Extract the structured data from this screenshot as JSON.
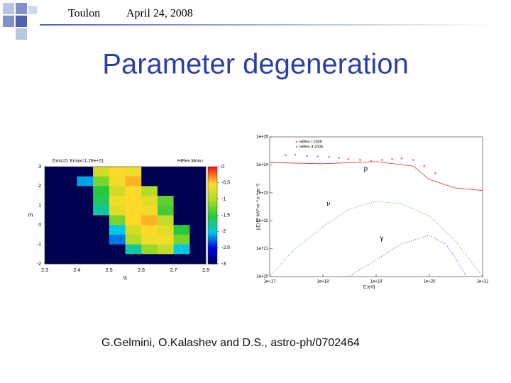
{
  "header": {
    "place": "Toulon",
    "date": "April 24, 2008"
  },
  "title": "Parameter degeneration",
  "caption": "G.Gelmini, O.Kalashev  and D.S.,  astro-ph/0702464",
  "chart_data": [
    {
      "type": "heatmap",
      "title": "Zmin=0;  Emax=1.26e+21",
      "subtitle": "HiRes Mono",
      "x_label": "α",
      "y_label": "m",
      "xlim": [
        2.3,
        2.8
      ],
      "ylim": [
        -2,
        3
      ],
      "xticks": [
        2.3,
        2.4,
        2.5,
        2.6,
        2.7,
        2.8
      ],
      "yticks": [
        -2,
        -1,
        0,
        1,
        2,
        3
      ],
      "zlim": [
        -3,
        0
      ],
      "zticks": [
        -3,
        -2.5,
        -2,
        -1.5,
        -1,
        -0.5,
        0
      ],
      "z": [
        [
          -3,
          -3,
          -3,
          -0.8,
          -0.5,
          -0.6,
          -3,
          -3,
          -3,
          -3
        ],
        [
          -3,
          -3,
          -2.1,
          -1.2,
          -0.6,
          -0.4,
          -3,
          -3,
          -3,
          -3
        ],
        [
          -3,
          -3,
          -3,
          -1.5,
          -0.8,
          -0.5,
          -1,
          -3,
          -3,
          -3
        ],
        [
          -3,
          -3,
          -3,
          -1.6,
          -0.6,
          -0.5,
          -0.7,
          -1.3,
          -3,
          -3
        ],
        [
          -3,
          -3,
          -3,
          -1.8,
          -0.7,
          -0.5,
          -0.6,
          -1.4,
          -3,
          -3
        ],
        [
          -3,
          -3,
          -3,
          -3,
          -1.2,
          -0.5,
          -0.4,
          -0.9,
          -3,
          -3
        ],
        [
          -3,
          -3,
          -3,
          -3,
          -2,
          -0.8,
          -0.5,
          -0.7,
          -1.5,
          -3
        ],
        [
          -3,
          -3,
          -3,
          -3,
          -2.2,
          -1,
          -0.6,
          -0.6,
          -1.2,
          -3
        ],
        [
          -3,
          -3,
          -3,
          -3,
          -3,
          -1.8,
          -1.1,
          -0.9,
          -2,
          -3
        ],
        [
          -3,
          -3,
          -3,
          -3,
          -3,
          -3,
          -3,
          -3,
          -3,
          -3
        ]
      ]
    },
    {
      "type": "line",
      "x_label": "E [eV]",
      "y_label": "j(E) E³ [eV² m⁻² s⁻¹ sr⁻¹]",
      "log_x": true,
      "log_y": true,
      "xlim": [
        1e+17,
        1e+21
      ],
      "ylim": [
        1e+20,
        1e+25
      ],
      "xticks": [
        {
          "value": 1e+17,
          "label": "1e+17"
        },
        {
          "value": 1e+18,
          "label": "1e+18"
        },
        {
          "value": 1e+19,
          "label": "1e+19"
        },
        {
          "value": 1e+20,
          "label": "1e+20"
        },
        {
          "value": 1e+21,
          "label": "1e+21"
        }
      ],
      "yticks": [
        {
          "value": 1e+20,
          "label": "1e+20"
        },
        {
          "value": 1e+21,
          "label": "1e+21"
        },
        {
          "value": 1e+22,
          "label": "1e+22"
        },
        {
          "value": 1e+23,
          "label": "1e+23"
        },
        {
          "value": 1e+24,
          "label": "1e+24"
        },
        {
          "value": 1e+25,
          "label": "1e+25"
        }
      ],
      "series": [
        {
          "name": "HiRes I 2005",
          "color": "#e060c0",
          "style": "points",
          "x": [
            3e+18,
            5e+18,
            8e+18,
            1.3e+19,
            2e+19,
            3e+19,
            5e+19,
            8e+19,
            1.3e+20
          ],
          "values": [
            1.6e+24,
            1.5e+24,
            1.4e+24,
            1.5e+24,
            1.6e+24,
            1.7e+24,
            1.5e+24,
            9e+23,
            5e+23
          ]
        },
        {
          "name": "HiRes II 2005",
          "color": "#a080e0",
          "style": "points",
          "x": [
            2e+17,
            3e+17,
            5e+17,
            8e+17,
            1.3e+18,
            2e+18
          ],
          "values": [
            2.2e+24,
            2.3e+24,
            2.1e+24,
            2e+24,
            1.9e+24,
            1.8e+24
          ]
        },
        {
          "label": "p",
          "color": "#e03030",
          "style": "line",
          "x": [
            1e+17,
            1e+18,
            1e+19,
            5e+19,
            1e+20,
            3e+20,
            1e+21
          ],
          "values": [
            1.2e+24,
            1.1e+24,
            1.3e+24,
            9e+23,
            3e+23,
            1.5e+23,
            1.2e+23
          ]
        },
        {
          "label": "ν",
          "color": "#40b040",
          "style": "dotted",
          "x": [
            1e+17,
            3e+17,
            1e+18,
            3e+18,
            1e+19,
            3e+19,
            1e+20,
            3e+20,
            1e+21
          ],
          "values": [
            1e+20,
            1e+21,
            6e+21,
            2.5e+22,
            5e+22,
            4e+22,
            1.5e+22,
            2e+21,
            1e+20
          ]
        },
        {
          "label": "γ",
          "color": "#4060d0",
          "style": "dotted",
          "x": [
            3e+18,
            1e+19,
            3e+19,
            1e+20,
            2e+20,
            3e+20,
            5e+20
          ],
          "values": [
            1e+20,
            4e+20,
            1.5e+21,
            3e+21,
            1.5e+21,
            5e+20,
            1e+20
          ]
        }
      ]
    }
  ]
}
